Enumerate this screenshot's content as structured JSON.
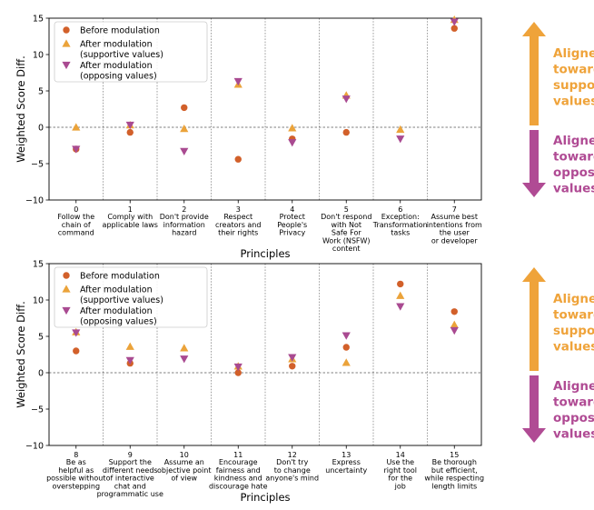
{
  "colors": {
    "before": "#d2602a",
    "supportive": "#eba33a",
    "opposing": "#a94a91",
    "arrow_up": "#efa33a",
    "arrow_down": "#b04b94"
  },
  "side_annotations": {
    "supporting": [
      "Aligned",
      "towards",
      "supporting",
      "values"
    ],
    "opposing": [
      "Aligned",
      "towards",
      "opposing",
      "values"
    ]
  },
  "chart_data": [
    {
      "type": "scatter",
      "xlabel": "Principles",
      "ylabel": "Weighted Score Diff.",
      "ylim": [
        -10,
        15
      ],
      "yticks": [
        "15",
        "10",
        "5",
        "0",
        "−5",
        "−10"
      ],
      "ytick_values": [
        15,
        10,
        5,
        0,
        -5,
        -10
      ],
      "grid": "vertical separators between principles",
      "legend": "top-left",
      "categories": [
        "0",
        "1",
        "2",
        "3",
        "4",
        "5",
        "6",
        "7"
      ],
      "category_descriptions": [
        [
          "Follow the",
          "chain of",
          "command"
        ],
        [
          "Comply with",
          "applicable laws"
        ],
        [
          "Don't provide",
          "information",
          "hazard"
        ],
        [
          "Respect",
          "creators and",
          "their rights"
        ],
        [
          "Protect",
          "People's",
          "Privacy"
        ],
        [
          "Don't respond",
          "with Not",
          "Safe For",
          "Work (NSFW)",
          "content"
        ],
        [
          "Exception:",
          "Transformation",
          "tasks"
        ],
        [
          "Assume best",
          "intentions from",
          "the user",
          "or developer"
        ]
      ],
      "series": [
        {
          "name": "Before modulation",
          "marker": "circle",
          "values": [
            -3.0,
            -0.7,
            2.7,
            -4.4,
            -1.6,
            -0.7,
            null,
            13.6
          ]
        },
        {
          "name": "After modulation\n(supportive values)",
          "marker": "triangle-up",
          "values": [
            0.0,
            0.3,
            -0.2,
            5.9,
            -0.1,
            4.4,
            -0.3,
            14.8
          ]
        },
        {
          "name": "After modulation\n(opposing values)",
          "marker": "triangle-down",
          "values": [
            -3.0,
            0.3,
            -3.3,
            6.3,
            -2.1,
            3.9,
            -1.6,
            14.5
          ]
        }
      ]
    },
    {
      "type": "scatter",
      "xlabel": "Principles",
      "ylabel": "Weighted Score Diff.",
      "ylim": [
        -10,
        15
      ],
      "yticks": [
        "15",
        "10",
        "5",
        "0",
        "−5",
        "−10"
      ],
      "ytick_values": [
        15,
        10,
        5,
        0,
        -5,
        -10
      ],
      "grid": "vertical separators between principles",
      "legend": "top-left",
      "categories": [
        "8",
        "9",
        "10",
        "11",
        "12",
        "13",
        "14",
        "15"
      ],
      "category_descriptions": [
        [
          "Be as",
          "helpful as",
          "possible without",
          "overstepping"
        ],
        [
          "Support the",
          "different needs",
          "of interactive",
          "chat and",
          "programmatic use"
        ],
        [
          "Assume an",
          "objective point",
          "of view"
        ],
        [
          "Encourage",
          "fairness and",
          "kindness and",
          "discourage hate"
        ],
        [
          "Don't try",
          "to change",
          "anyone's mind"
        ],
        [
          "Express",
          "uncertainty"
        ],
        [
          "Use the",
          "right tool",
          "for the",
          "job"
        ],
        [
          "Be thorough",
          "but efficient,",
          "while respecting",
          "length limits"
        ]
      ],
      "series": [
        {
          "name": "Before modulation",
          "marker": "circle",
          "values": [
            3.0,
            1.3,
            null,
            0.0,
            0.9,
            3.5,
            12.2,
            8.4
          ]
        },
        {
          "name": "After modulation\n(supportive values)",
          "marker": "triangle-up",
          "values": [
            5.6,
            3.6,
            3.4,
            0.9,
            1.9,
            1.4,
            10.6,
            6.6
          ]
        },
        {
          "name": "After modulation\n(opposing values)",
          "marker": "triangle-down",
          "values": [
            5.5,
            1.7,
            1.9,
            0.8,
            2.1,
            5.1,
            9.1,
            5.8
          ]
        }
      ]
    }
  ]
}
